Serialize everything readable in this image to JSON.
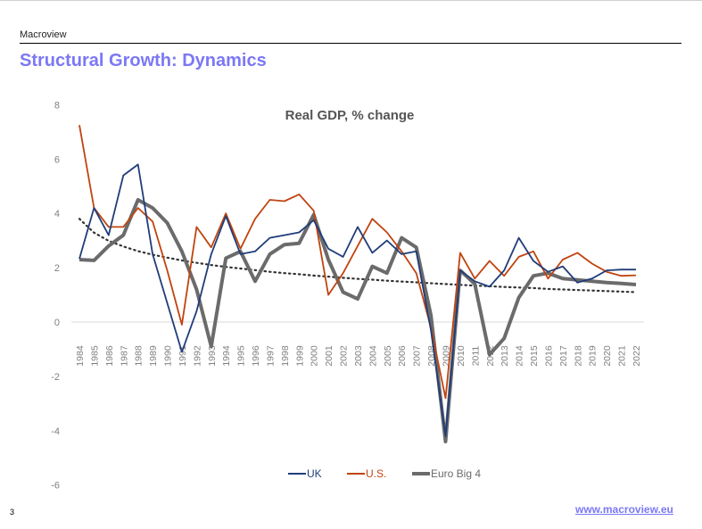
{
  "header": {
    "brand": "Macroview",
    "title": "Structural Growth: Dynamics"
  },
  "footer": {
    "page_number": "3",
    "url": "www.macroview.eu"
  },
  "colors": {
    "accent": "#7b78f5",
    "uk": "#1f3d7a",
    "us": "#c0440f",
    "euro": "#6b6b6b",
    "trend": "#333333"
  },
  "chart_data": {
    "type": "line",
    "title": "Real GDP, % change",
    "xlabel": "",
    "ylabel": "",
    "ylim": [
      -6,
      8
    ],
    "yticks": [
      "8",
      "6",
      "4",
      "2",
      "0",
      "-2",
      "-4",
      "-6"
    ],
    "ytick_values": [
      8,
      6,
      4,
      2,
      0,
      -2,
      -4,
      -6
    ],
    "grid": false,
    "legend": "bottom",
    "categories": [
      "1984",
      "1985",
      "1986",
      "1987",
      "1988",
      "1989",
      "1990",
      "1991",
      "1992",
      "1993",
      "1994",
      "1995",
      "1996",
      "1997",
      "1998",
      "1999",
      "2000",
      "2001",
      "2002",
      "2003",
      "2004",
      "2005",
      "2006",
      "2007",
      "2008",
      "2009",
      "2010",
      "2011",
      "2012",
      "2013",
      "2014",
      "2015",
      "2016",
      "2017",
      "2018",
      "2019",
      "2020",
      "2021",
      "2022"
    ],
    "series": [
      {
        "name": "UK",
        "key": "uk",
        "values": [
          2.33,
          4.2,
          3.2,
          5.4,
          5.8,
          2.5,
          0.7,
          -1.1,
          0.4,
          2.5,
          3.9,
          2.5,
          2.6,
          3.1,
          3.2,
          3.3,
          3.75,
          2.7,
          2.4,
          3.5,
          2.55,
          3.0,
          2.5,
          2.6,
          -0.3,
          -4.2,
          1.9,
          1.5,
          1.3,
          1.9,
          3.1,
          2.25,
          1.85,
          2.05,
          1.45,
          1.6,
          1.9,
          1.93,
          1.93
        ]
      },
      {
        "name": "U.S.",
        "key": "us",
        "values": [
          7.25,
          4.2,
          3.5,
          3.5,
          4.2,
          3.7,
          1.9,
          -0.1,
          3.5,
          2.75,
          4.0,
          2.7,
          3.8,
          4.5,
          4.45,
          4.7,
          4.1,
          1.0,
          1.8,
          2.8,
          3.8,
          3.3,
          2.6,
          1.8,
          -0.2,
          -2.8,
          2.55,
          1.6,
          2.25,
          1.7,
          2.4,
          2.6,
          1.6,
          2.3,
          2.55,
          2.15,
          1.85,
          1.7,
          1.72
        ]
      },
      {
        "name": "Euro Big 4",
        "key": "euro",
        "values": [
          2.3,
          2.27,
          2.8,
          3.2,
          4.5,
          4.2,
          3.65,
          2.6,
          1.2,
          -0.9,
          2.35,
          2.6,
          1.5,
          2.5,
          2.85,
          2.9,
          3.95,
          2.3,
          1.1,
          0.85,
          2.05,
          1.8,
          3.1,
          2.75,
          0.25,
          -4.4,
          1.9,
          1.4,
          -1.2,
          -0.6,
          0.9,
          1.7,
          1.8,
          1.6,
          1.55,
          1.5,
          1.45,
          1.42,
          1.38
        ]
      },
      {
        "name": "Trend (log, dotted)",
        "key": "trend",
        "in_legend": false,
        "values": [
          3.8,
          3.29,
          2.99,
          2.78,
          2.61,
          2.48,
          2.37,
          2.27,
          2.18,
          2.1,
          2.03,
          1.97,
          1.91,
          1.85,
          1.8,
          1.76,
          1.71,
          1.67,
          1.63,
          1.59,
          1.56,
          1.52,
          1.49,
          1.46,
          1.43,
          1.4,
          1.37,
          1.34,
          1.32,
          1.29,
          1.27,
          1.25,
          1.22,
          1.2,
          1.18,
          1.16,
          1.14,
          1.12,
          1.1
        ]
      }
    ],
    "legend_entries": [
      {
        "label": "UK",
        "key": "uk"
      },
      {
        "label": "U.S.",
        "key": "us"
      },
      {
        "label": "Euro Big 4",
        "key": "euro"
      }
    ]
  }
}
